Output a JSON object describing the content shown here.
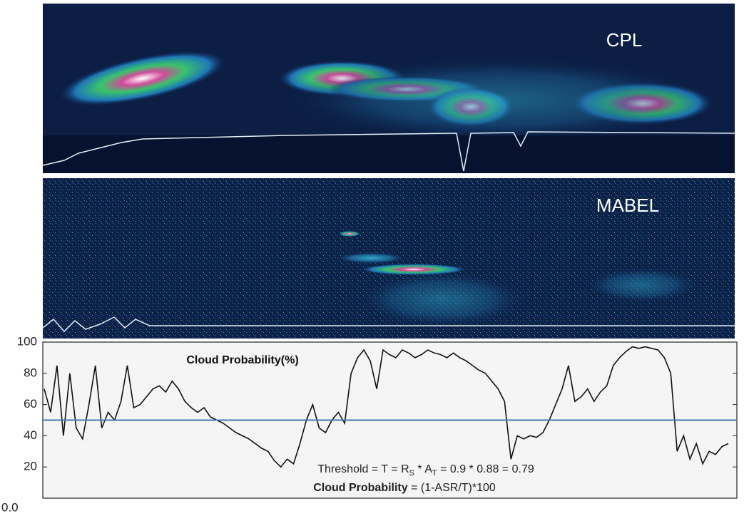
{
  "panels": {
    "top_label": "CPL",
    "middle_label": "MABEL"
  },
  "chart_data": {
    "type": "line",
    "title": "Cloud Probability(%)",
    "values": [
      70,
      55,
      85,
      40,
      80,
      45,
      38,
      60,
      85,
      45,
      55,
      50,
      62,
      85,
      58,
      60,
      65,
      70,
      72,
      68,
      75,
      70,
      62,
      58,
      55,
      58,
      52,
      50,
      48,
      45,
      42,
      40,
      38,
      35,
      32,
      30,
      24,
      20,
      25,
      22,
      35,
      50,
      60,
      45,
      42,
      50,
      55,
      48,
      80,
      90,
      95,
      88,
      70,
      95,
      92,
      90,
      95,
      93,
      90,
      92,
      95,
      93,
      92,
      90,
      93,
      90,
      88,
      85,
      82,
      80,
      75,
      70,
      62,
      25,
      40,
      38,
      40,
      39,
      42,
      50,
      60,
      70,
      85,
      62,
      65,
      70,
      62,
      68,
      72,
      85,
      90,
      94,
      97,
      96,
      97,
      96,
      95,
      90,
      80,
      30,
      40,
      25,
      35,
      22,
      30,
      28,
      33,
      35
    ],
    "color": "#111111",
    "threshold": 50,
    "threshold_color": "#4a78b0",
    "ylim": [
      0,
      100
    ],
    "yticks": [
      {
        "value": 0,
        "label": "0.0"
      },
      20,
      40,
      60,
      80,
      100
    ],
    "annotation_threshold": [
      "Threshold = T = R",
      "S",
      " * A",
      "T",
      " = 0.9 * 0.88 = 0.79"
    ],
    "annotation_formula": [
      "Cloud Probability",
      " = (1-ASR/T)*100"
    ]
  }
}
